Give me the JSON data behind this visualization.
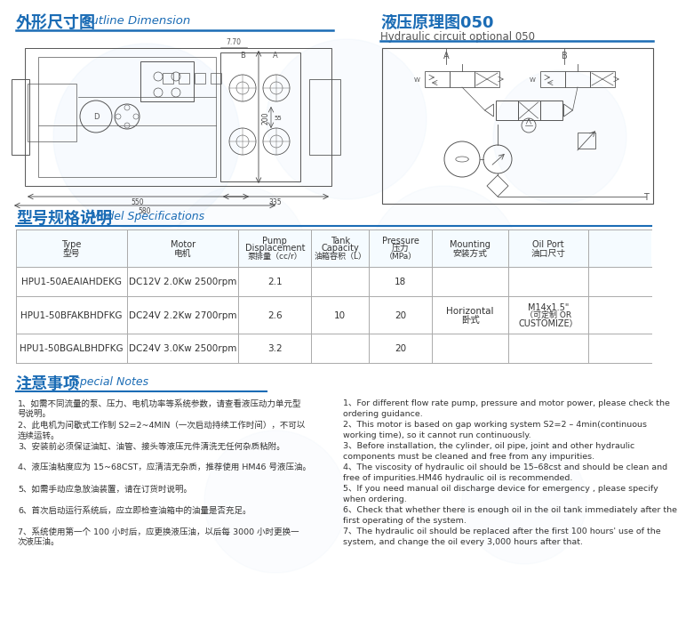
{
  "title1_zh": "外形尺寸图",
  "title1_en": "Outline Dimension",
  "title2_zh": "液压原理图050",
  "title2_en": "Hydraulic circuit optional 050",
  "section2_zh": "型号规格说明",
  "section2_en": "Model Specifications",
  "section3_zh": "注意事项",
  "section3_en": "Special Notes",
  "table_headers_line1": [
    "Type",
    "Motor",
    "Pump",
    "Tank",
    "Pressure",
    "Mounting",
    "Oil Port"
  ],
  "table_headers_line2": [
    "型号",
    "电机",
    "Displacement",
    "Capacity",
    "压力",
    "安装方式",
    "油口尺寸"
  ],
  "table_headers_line3": [
    "",
    "",
    "泵排量（cc/r）",
    "油箱容积（L）",
    "（MPa）",
    "",
    ""
  ],
  "table_rows": [
    [
      "HPU1-50AEAIAHDEKG",
      "DC12V 2.0Kw 2500rpm",
      "2.1",
      "",
      "18",
      "",
      ""
    ],
    [
      "HPU1-50BFAKBHDFKG",
      "DC24V 2.2Kw 2700rpm",
      "2.6",
      "10",
      "20",
      "Horizontal\n卧式",
      "M14x1.5\"\n（可定制 OR\nCUSTOMIZE）"
    ],
    [
      "HPU1-50BGALBHDFKG",
      "DC24V 3.0Kw 2500rpm",
      "3.2",
      "",
      "20",
      "",
      ""
    ]
  ],
  "notes_zh_line1": [
    "1、如需不同流量的泵、压力、电机功率等系统参数，请查看液压动力单元型",
    "2、此电机为间歇式工作制 S2=2~4MIN（一次启动持续工作时间），不可以",
    "3、安装前必须保证油缸、油管、接头等液压元件清洗无任何杂质粘附。",
    "4、液压油粘度应为 15~68CST，应清洁无杂质，推荐使用 HM46 号液压油。",
    "5、如需手动应急放油装置，请在订货时说明。",
    "6、首次启动运行系统后，应立即检查油箱中的油量是否充足。",
    "7、系统使用第一个 100 小时后，应更换液压油，以后每 3000 小时更换一"
  ],
  "notes_zh_line2": [
    "号说明。",
    "连续运转。",
    "",
    "",
    "",
    "",
    "次液压油。"
  ],
  "notes_en_line1": [
    "1、For different flow rate pump, pressure and motor power, please check the",
    "2、This motor is based on gap working system S2=2 – 4min(continuous",
    "3、Before installation, the cylinder, oil pipe, joint and other hydraulic",
    "4、The viscosity of hydraulic oil should be 15–68cst and should be clean and",
    "5、If you need manual oil discharge device for emergency , please specify",
    "6、Check that whether there is enough oil in the oil tank immediately after the",
    "7、The hydraulic oil should be replaced after the first 100 hours' use of the"
  ],
  "notes_en_line2": [
    "ordering guidance.",
    "working time), so it cannot run continuously.",
    "components must be cleaned and free from any impurities.",
    "free of impurities.HM46 hydraulic oil is recommended.",
    "when ordering.",
    "first operating of the system.",
    "system, and change the oil every 3,000 hours after that."
  ],
  "blue_color": "#1B6CB5",
  "text_dark": "#333333",
  "bg_color": "#FFFFFF",
  "watermark_color_1": "#C8E0F8",
  "watermark_color_2": "#D5E8F5"
}
